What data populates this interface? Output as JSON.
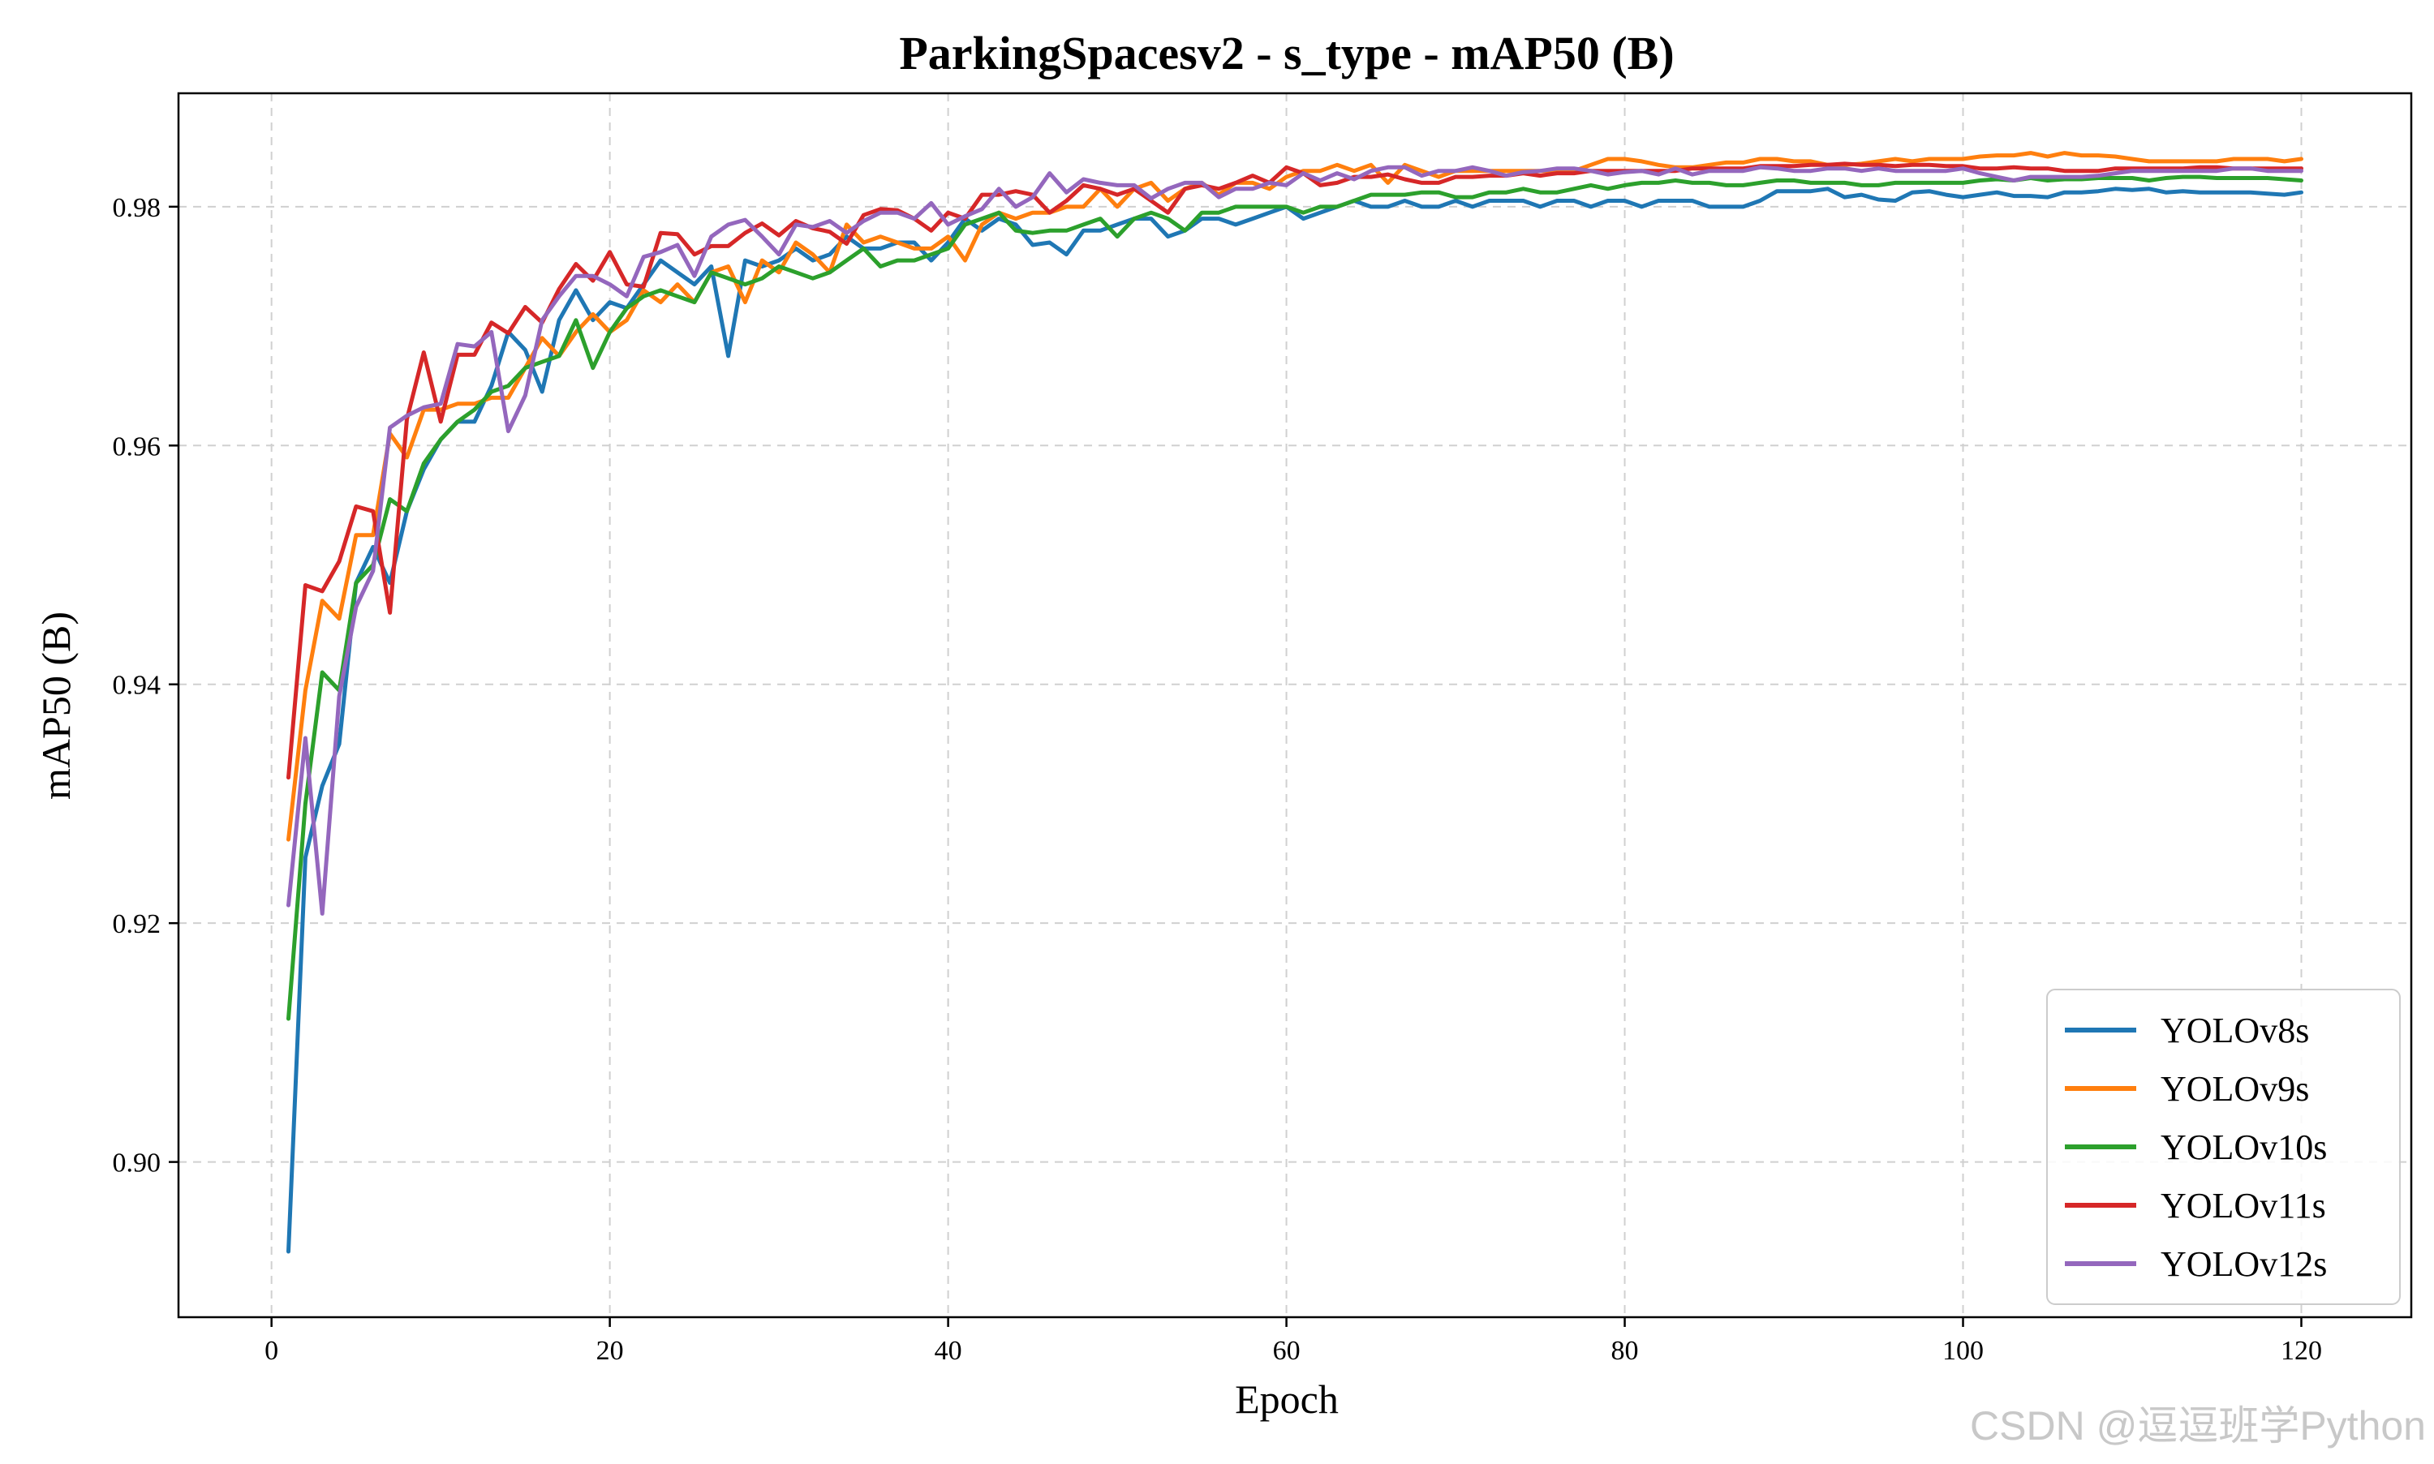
{
  "watermark": "CSDN @逗逗班学Python",
  "chart_data": {
    "type": "line",
    "title": "ParkingSpacesv2 - s_type - mAP50 (B)",
    "xlabel": "Epoch",
    "ylabel": "mAP50 (B)",
    "xlim": [
      -5.5,
      126.5
    ],
    "ylim": [
      0.887,
      0.9895
    ],
    "xticks": [
      0,
      20,
      40,
      60,
      80,
      100,
      120
    ],
    "yticks": [
      0.9,
      0.92,
      0.94,
      0.96,
      0.98
    ],
    "xtick_labels": [
      "0",
      "20",
      "40",
      "60",
      "80",
      "100",
      "120"
    ],
    "ytick_labels": [
      "0.90",
      "0.92",
      "0.94",
      "0.96",
      "0.98"
    ],
    "grid": true,
    "legend_position": "lower-right",
    "x": [
      1,
      2,
      3,
      4,
      5,
      6,
      7,
      8,
      9,
      10,
      11,
      12,
      13,
      14,
      15,
      16,
      17,
      18,
      19,
      20,
      21,
      22,
      23,
      24,
      25,
      26,
      27,
      28,
      29,
      30,
      31,
      32,
      33,
      34,
      35,
      36,
      37,
      38,
      39,
      40,
      41,
      42,
      43,
      44,
      45,
      46,
      47,
      48,
      49,
      50,
      51,
      52,
      53,
      54,
      55,
      56,
      57,
      58,
      59,
      60,
      61,
      62,
      63,
      64,
      65,
      66,
      67,
      68,
      69,
      70,
      71,
      72,
      73,
      74,
      75,
      76,
      77,
      78,
      79,
      80,
      81,
      82,
      83,
      84,
      85,
      86,
      87,
      88,
      89,
      90,
      91,
      92,
      93,
      94,
      95,
      96,
      97,
      98,
      99,
      100,
      101,
      102,
      103,
      104,
      105,
      106,
      107,
      108,
      109,
      110,
      111,
      112,
      113,
      114,
      115,
      116,
      117,
      118,
      119,
      120
    ],
    "series": [
      {
        "name": "YOLOv8s",
        "color": "#1f77b4",
        "values": [
          0.8925,
          0.9255,
          0.9315,
          0.935,
          0.9485,
          0.9515,
          0.9485,
          0.9545,
          0.958,
          0.9605,
          0.962,
          0.962,
          0.965,
          0.9695,
          0.968,
          0.9645,
          0.9705,
          0.973,
          0.9705,
          0.972,
          0.9715,
          0.9735,
          0.9755,
          0.9745,
          0.9735,
          0.975,
          0.9675,
          0.9755,
          0.975,
          0.9755,
          0.9765,
          0.9755,
          0.976,
          0.9775,
          0.9765,
          0.9765,
          0.977,
          0.977,
          0.9755,
          0.977,
          0.979,
          0.978,
          0.979,
          0.9785,
          0.9768,
          0.977,
          0.976,
          0.978,
          0.978,
          0.9785,
          0.979,
          0.979,
          0.9775,
          0.978,
          0.979,
          0.979,
          0.9785,
          0.979,
          0.9795,
          0.98,
          0.979,
          0.9795,
          0.98,
          0.9805,
          0.98,
          0.98,
          0.9805,
          0.98,
          0.98,
          0.9805,
          0.98,
          0.9805,
          0.9805,
          0.9805,
          0.98,
          0.9805,
          0.9805,
          0.98,
          0.9805,
          0.9805,
          0.98,
          0.9805,
          0.9805,
          0.9805,
          0.98,
          0.98,
          0.98,
          0.9805,
          0.9813,
          0.9813,
          0.9813,
          0.9815,
          0.9808,
          0.981,
          0.9806,
          0.9805,
          0.9812,
          0.9813,
          0.981,
          0.9808,
          0.981,
          0.9812,
          0.9809,
          0.9809,
          0.9808,
          0.9812,
          0.9812,
          0.9813,
          0.9815,
          0.9814,
          0.9815,
          0.9812,
          0.9813,
          0.9812,
          0.9812,
          0.9812,
          0.9812,
          0.9811,
          0.981,
          0.9812
        ]
      },
      {
        "name": "YOLOv9s",
        "color": "#ff7f0e",
        "values": [
          0.927,
          0.9395,
          0.947,
          0.9455,
          0.9525,
          0.9525,
          0.961,
          0.959,
          0.963,
          0.963,
          0.9635,
          0.9635,
          0.964,
          0.964,
          0.9665,
          0.969,
          0.9675,
          0.9695,
          0.971,
          0.9695,
          0.9705,
          0.973,
          0.972,
          0.9735,
          0.972,
          0.9745,
          0.975,
          0.972,
          0.9755,
          0.9745,
          0.977,
          0.976,
          0.9745,
          0.9785,
          0.977,
          0.9775,
          0.977,
          0.9765,
          0.9765,
          0.9775,
          0.9755,
          0.9785,
          0.9795,
          0.979,
          0.9795,
          0.9795,
          0.98,
          0.98,
          0.9815,
          0.98,
          0.9815,
          0.982,
          0.9805,
          0.9815,
          0.982,
          0.981,
          0.982,
          0.982,
          0.9815,
          0.9825,
          0.983,
          0.983,
          0.9835,
          0.983,
          0.9835,
          0.982,
          0.9835,
          0.983,
          0.9825,
          0.983,
          0.983,
          0.983,
          0.983,
          0.983,
          0.983,
          0.983,
          0.983,
          0.9835,
          0.984,
          0.984,
          0.9838,
          0.9835,
          0.9833,
          0.9833,
          0.9835,
          0.9837,
          0.9837,
          0.984,
          0.984,
          0.9838,
          0.9838,
          0.9835,
          0.9835,
          0.9836,
          0.9838,
          0.984,
          0.9838,
          0.984,
          0.984,
          0.984,
          0.9842,
          0.9843,
          0.9843,
          0.9845,
          0.9842,
          0.9845,
          0.9843,
          0.9843,
          0.9842,
          0.984,
          0.9838,
          0.9838,
          0.9838,
          0.9838,
          0.9838,
          0.984,
          0.984,
          0.984,
          0.9838,
          0.984
        ]
      },
      {
        "name": "YOLOv10s",
        "color": "#2ca02c",
        "values": [
          0.912,
          0.93,
          0.941,
          0.9395,
          0.9485,
          0.95,
          0.9555,
          0.9545,
          0.9585,
          0.9605,
          0.962,
          0.963,
          0.9645,
          0.965,
          0.9665,
          0.967,
          0.9675,
          0.9705,
          0.9665,
          0.9695,
          0.9715,
          0.9725,
          0.973,
          0.9725,
          0.972,
          0.9745,
          0.974,
          0.9735,
          0.974,
          0.975,
          0.9745,
          0.974,
          0.9745,
          0.9755,
          0.9765,
          0.975,
          0.9755,
          0.9755,
          0.976,
          0.9765,
          0.9785,
          0.979,
          0.9795,
          0.978,
          0.9778,
          0.978,
          0.978,
          0.9785,
          0.979,
          0.9775,
          0.979,
          0.9795,
          0.979,
          0.978,
          0.9795,
          0.9795,
          0.98,
          0.98,
          0.98,
          0.98,
          0.9795,
          0.98,
          0.98,
          0.9805,
          0.981,
          0.981,
          0.981,
          0.9812,
          0.9812,
          0.9808,
          0.9808,
          0.9812,
          0.9812,
          0.9815,
          0.9812,
          0.9812,
          0.9815,
          0.9818,
          0.9815,
          0.9818,
          0.982,
          0.982,
          0.9822,
          0.982,
          0.982,
          0.9818,
          0.9818,
          0.982,
          0.9822,
          0.9822,
          0.982,
          0.982,
          0.982,
          0.9818,
          0.9818,
          0.982,
          0.982,
          0.982,
          0.982,
          0.982,
          0.9822,
          0.9823,
          0.9822,
          0.9824,
          0.9822,
          0.9823,
          0.9823,
          0.9824,
          0.9824,
          0.9824,
          0.9822,
          0.9824,
          0.9825,
          0.9825,
          0.9824,
          0.9824,
          0.9824,
          0.9824,
          0.9823,
          0.9822
        ]
      },
      {
        "name": "YOLOv11s",
        "color": "#d62728",
        "values": [
          0.9322,
          0.9483,
          0.9478,
          0.9503,
          0.9549,
          0.9545,
          0.946,
          0.9622,
          0.9678,
          0.962,
          0.9676,
          0.9676,
          0.9703,
          0.9694,
          0.9716,
          0.9703,
          0.9731,
          0.9752,
          0.9738,
          0.9762,
          0.9735,
          0.9733,
          0.9778,
          0.9777,
          0.976,
          0.9767,
          0.9767,
          0.9778,
          0.9786,
          0.9776,
          0.9788,
          0.9782,
          0.9779,
          0.9769,
          0.9793,
          0.9798,
          0.9797,
          0.979,
          0.978,
          0.9795,
          0.979,
          0.981,
          0.981,
          0.9813,
          0.981,
          0.9795,
          0.9805,
          0.9818,
          0.9815,
          0.981,
          0.9815,
          0.9805,
          0.9795,
          0.9815,
          0.9818,
          0.9815,
          0.982,
          0.9826,
          0.982,
          0.9833,
          0.9828,
          0.9818,
          0.982,
          0.9825,
          0.9825,
          0.9827,
          0.9823,
          0.982,
          0.982,
          0.9825,
          0.9825,
          0.9826,
          0.9826,
          0.9828,
          0.9826,
          0.9828,
          0.9828,
          0.983,
          0.983,
          0.983,
          0.983,
          0.983,
          0.983,
          0.9832,
          0.9832,
          0.9832,
          0.9832,
          0.9834,
          0.9834,
          0.9834,
          0.9835,
          0.9835,
          0.9836,
          0.9835,
          0.9835,
          0.9834,
          0.9835,
          0.9835,
          0.9834,
          0.9834,
          0.9832,
          0.9832,
          0.9833,
          0.9832,
          0.9832,
          0.983,
          0.983,
          0.983,
          0.9832,
          0.9832,
          0.9832,
          0.9832,
          0.9832,
          0.9833,
          0.9833,
          0.9832,
          0.9832,
          0.9832,
          0.9832,
          0.9832
        ]
      },
      {
        "name": "YOLOv12s",
        "color": "#9467bd",
        "values": [
          0.9215,
          0.9355,
          0.9208,
          0.939,
          0.9465,
          0.9495,
          0.9615,
          0.9625,
          0.9632,
          0.9635,
          0.9685,
          0.9683,
          0.9695,
          0.9612,
          0.9642,
          0.9705,
          0.9725,
          0.9742,
          0.9742,
          0.9735,
          0.9725,
          0.9758,
          0.9762,
          0.9768,
          0.9742,
          0.9775,
          0.9785,
          0.9789,
          0.9775,
          0.976,
          0.9785,
          0.9783,
          0.9788,
          0.9778,
          0.9788,
          0.9795,
          0.9795,
          0.979,
          0.9803,
          0.9785,
          0.9792,
          0.9798,
          0.9815,
          0.98,
          0.9808,
          0.9828,
          0.9812,
          0.9823,
          0.982,
          0.9818,
          0.9818,
          0.9807,
          0.9815,
          0.982,
          0.982,
          0.9808,
          0.9815,
          0.9815,
          0.982,
          0.9818,
          0.9828,
          0.9822,
          0.9828,
          0.9823,
          0.983,
          0.9833,
          0.9833,
          0.9826,
          0.983,
          0.983,
          0.9833,
          0.983,
          0.9826,
          0.9829,
          0.983,
          0.9832,
          0.9832,
          0.983,
          0.9827,
          0.9829,
          0.983,
          0.9827,
          0.9832,
          0.9827,
          0.983,
          0.983,
          0.983,
          0.9833,
          0.9832,
          0.983,
          0.983,
          0.9832,
          0.9832,
          0.983,
          0.9832,
          0.983,
          0.983,
          0.983,
          0.983,
          0.9832,
          0.9828,
          0.9825,
          0.9822,
          0.9825,
          0.9825,
          0.9825,
          0.9825,
          0.9826,
          0.9828,
          0.983,
          0.983,
          0.983,
          0.983,
          0.983,
          0.983,
          0.9832,
          0.9832,
          0.983,
          0.983,
          0.983
        ]
      }
    ]
  }
}
